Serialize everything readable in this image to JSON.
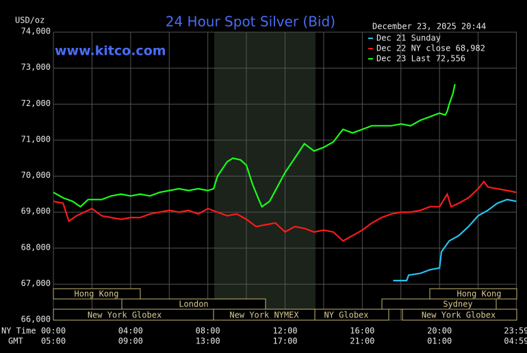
{
  "chart_data": {
    "type": "line",
    "title": "24 Hour Spot Silver (Bid)",
    "timestamp": "December 23, 2025 20:44",
    "watermark": "www.kitco.com",
    "ylabel": "USD/oz",
    "xlabel": "NY Time",
    "x2label": "GMT",
    "xlim": [
      0,
      24
    ],
    "ylim": [
      66000,
      74000
    ],
    "xticks": [
      {
        "value": 0,
        "label": "00:00"
      },
      {
        "value": 4,
        "label": "04:00"
      },
      {
        "value": 8,
        "label": "08:00"
      },
      {
        "value": 12,
        "label": "12:00"
      },
      {
        "value": 16,
        "label": "16:00"
      },
      {
        "value": 20,
        "label": "20:00"
      },
      {
        "value": 23.98,
        "label": "23:59"
      }
    ],
    "x_minor_ticks": [
      2,
      6,
      10,
      14,
      18,
      22
    ],
    "gmt_labels": [
      "05:00",
      "09:00",
      "13:00",
      "17:00",
      "21:00",
      "01:00",
      "04:59"
    ],
    "yticks": [
      {
        "value": 66000,
        "label": "66,000"
      },
      {
        "value": 67000,
        "label": "67,000"
      },
      {
        "value": 68000,
        "label": "68,000"
      },
      {
        "value": 69000,
        "label": "69,000"
      },
      {
        "value": 70000,
        "label": "70,000"
      },
      {
        "value": 71000,
        "label": "71,000"
      },
      {
        "value": 72000,
        "label": "72,000"
      },
      {
        "value": 73000,
        "label": "73,000"
      },
      {
        "value": 74000,
        "label": "74,000"
      }
    ],
    "grid": true,
    "sessions": [
      "Hong Kong",
      "London",
      "New York Globex",
      "New York NYMEX",
      "NY Globex",
      "Hong Kong",
      "Sydney",
      "New York Globex"
    ],
    "series": [
      {
        "name": "Dec 21 Sunday",
        "color": "#27c4f0",
        "x": [
          17.6,
          18.3,
          18.4,
          19,
          19.5,
          20,
          20.1,
          20.5,
          21,
          21.5,
          22,
          22.5,
          23,
          23.5,
          23.98
        ],
        "values": [
          67100,
          67100,
          67250,
          67300,
          67400,
          67450,
          67900,
          68200,
          68350,
          68600,
          68900,
          69050,
          69250,
          69350,
          69300
        ]
      },
      {
        "name": "Dec 22 NY close 68,982",
        "color": "#ff1a1a",
        "x": [
          0,
          0.5,
          0.8,
          1.2,
          1.6,
          2,
          2.5,
          3,
          3.5,
          4,
          4.5,
          5,
          5.5,
          6,
          6.5,
          7,
          7.5,
          8,
          8.5,
          9,
          9.5,
          10,
          10.5,
          11,
          11.5,
          12,
          12.5,
          13,
          13.5,
          14,
          14.5,
          15,
          15.5,
          16,
          16.5,
          17,
          17.5,
          18,
          18.5,
          19,
          19.5,
          20,
          20.4,
          20.6,
          21,
          21.5,
          22,
          22.3,
          22.5,
          23,
          23.5,
          23.98
        ],
        "values": [
          69300,
          69250,
          68750,
          68900,
          69000,
          69100,
          68900,
          68850,
          68800,
          68850,
          68850,
          68950,
          69000,
          69050,
          69000,
          69050,
          68950,
          69100,
          69000,
          68900,
          68950,
          68800,
          68600,
          68650,
          68700,
          68450,
          68600,
          68550,
          68450,
          68500,
          68450,
          68200,
          68350,
          68500,
          68700,
          68850,
          68950,
          69000,
          69000,
          69050,
          69150,
          69150,
          69500,
          69150,
          69250,
          69400,
          69650,
          69850,
          69700,
          69650,
          69600,
          69550
        ]
      },
      {
        "name": "Dec 23 Last 72,556",
        "color": "#1aff1a",
        "x": [
          0,
          0.5,
          1,
          1.4,
          1.8,
          2.5,
          3,
          3.5,
          4,
          4.5,
          5,
          5.5,
          6,
          6.5,
          7,
          7.5,
          8,
          8.3,
          8.5,
          9,
          9.3,
          9.7,
          10,
          10.3,
          10.6,
          10.8,
          11.2,
          11.6,
          12,
          12.5,
          13,
          13.5,
          14,
          14.5,
          15,
          15.5,
          16,
          16.5,
          17,
          17.5,
          18,
          18.5,
          19,
          19.5,
          20,
          20.3,
          20.4,
          20.5,
          20.7,
          20.8
        ],
        "values": [
          69550,
          69400,
          69300,
          69150,
          69350,
          69350,
          69450,
          69500,
          69450,
          69500,
          69450,
          69550,
          69600,
          69650,
          69600,
          69650,
          69600,
          69650,
          70000,
          70400,
          70500,
          70450,
          70300,
          69800,
          69400,
          69150,
          69300,
          69700,
          70100,
          70500,
          70900,
          70700,
          70800,
          70950,
          71300,
          71200,
          71300,
          71400,
          71400,
          71400,
          71450,
          71400,
          71550,
          71650,
          71750,
          71700,
          71800,
          72000,
          72300,
          72556
        ]
      }
    ]
  }
}
